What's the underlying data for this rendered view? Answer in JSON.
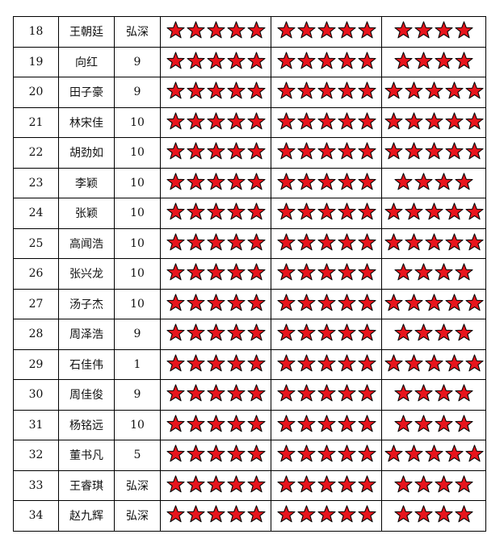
{
  "star_color": "#e8141c",
  "star_icon": "star-icon",
  "rows": [
    {
      "no": "18",
      "name": "王朝廷",
      "value": "弘深",
      "stars": [
        5,
        5,
        4
      ]
    },
    {
      "no": "19",
      "name": "向红",
      "value": "9",
      "stars": [
        5,
        5,
        4
      ]
    },
    {
      "no": "20",
      "name": "田子豪",
      "value": "9",
      "stars": [
        5,
        5,
        5
      ]
    },
    {
      "no": "21",
      "name": "林宋佳",
      "value": "10",
      "stars": [
        5,
        5,
        5
      ]
    },
    {
      "no": "22",
      "name": "胡劲如",
      "value": "10",
      "stars": [
        5,
        5,
        5
      ]
    },
    {
      "no": "23",
      "name": "李颖",
      "value": "10",
      "stars": [
        5,
        5,
        4
      ]
    },
    {
      "no": "24",
      "name": "张颖",
      "value": "10",
      "stars": [
        5,
        5,
        5
      ]
    },
    {
      "no": "25",
      "name": "高闻浩",
      "value": "10",
      "stars": [
        5,
        5,
        5
      ]
    },
    {
      "no": "26",
      "name": "张兴龙",
      "value": "10",
      "stars": [
        5,
        5,
        4
      ]
    },
    {
      "no": "27",
      "name": "汤子杰",
      "value": "10",
      "stars": [
        5,
        5,
        5
      ]
    },
    {
      "no": "28",
      "name": "周泽浩",
      "value": "9",
      "stars": [
        5,
        5,
        4
      ]
    },
    {
      "no": "29",
      "name": "石佳伟",
      "value": "1",
      "stars": [
        5,
        5,
        5
      ]
    },
    {
      "no": "30",
      "name": "周佳俊",
      "value": "9",
      "stars": [
        5,
        5,
        4
      ]
    },
    {
      "no": "31",
      "name": "杨铭远",
      "value": "10",
      "stars": [
        5,
        5,
        4
      ]
    },
    {
      "no": "32",
      "name": "董书凡",
      "value": "5",
      "stars": [
        5,
        5,
        5
      ]
    },
    {
      "no": "33",
      "name": "王睿琪",
      "value": "弘深",
      "stars": [
        5,
        5,
        4
      ]
    },
    {
      "no": "34",
      "name": "赵九辉",
      "value": "弘深",
      "stars": [
        5,
        5,
        4
      ]
    }
  ]
}
